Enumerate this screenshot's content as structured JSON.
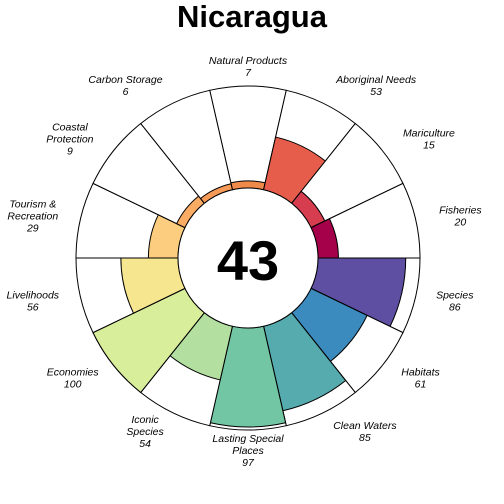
{
  "chart_data": {
    "type": "flower",
    "title": "Nicaragua",
    "center_value": "43",
    "max_value": 100,
    "label_color": "#000000",
    "outline_color": "#000000",
    "petals": [
      {
        "label_lines": [
          "Natural Products"
        ],
        "value_text": "7",
        "value": 7,
        "color": "#F08A4B"
      },
      {
        "label_lines": [
          "Aboriginal Needs"
        ],
        "value_text": "53",
        "value": 53,
        "color": "#E75D4B"
      },
      {
        "label_lines": [
          "Mariculture"
        ],
        "value_text": "15",
        "value": 15,
        "color": "#D63D4F"
      },
      {
        "label_lines": [
          "Fisheries"
        ],
        "value_text": "20",
        "value": 20,
        "color": "#A5014A"
      },
      {
        "label_lines": [
          "Species"
        ],
        "value_text": "86",
        "value": 86,
        "color": "#5E4FA2"
      },
      {
        "label_lines": [
          "Habitats"
        ],
        "value_text": "61",
        "value": 61,
        "color": "#3B8BBE"
      },
      {
        "label_lines": [
          "Clean Waters"
        ],
        "value_text": "85",
        "value": 85,
        "color": "#56ABAF"
      },
      {
        "label_lines": [
          "Lasting Special",
          "Places"
        ],
        "value_text": "97",
        "value": 97,
        "color": "#73C6A4"
      },
      {
        "label_lines": [
          "Iconic",
          "Species"
        ],
        "value_text": "54",
        "value": 54,
        "color": "#B3E0A0"
      },
      {
        "label_lines": [
          "Economies"
        ],
        "value_text": "100",
        "value": 100,
        "color": "#D8EE9B"
      },
      {
        "label_lines": [
          "Livelihoods"
        ],
        "value_text": "56",
        "value": 56,
        "color": "#F7E690"
      },
      {
        "label_lines": [
          "Tourism &",
          "Recreation"
        ],
        "value_text": "29",
        "value": 29,
        "color": "#FDCD7F"
      },
      {
        "label_lines": [
          "Coastal",
          "Protection"
        ],
        "value_text": "9",
        "value": 9,
        "color": "#FBAC64"
      },
      {
        "label_lines": [
          "Carbon Storage"
        ],
        "value_text": "6",
        "value": 6,
        "color": "#F59A57"
      }
    ]
  }
}
